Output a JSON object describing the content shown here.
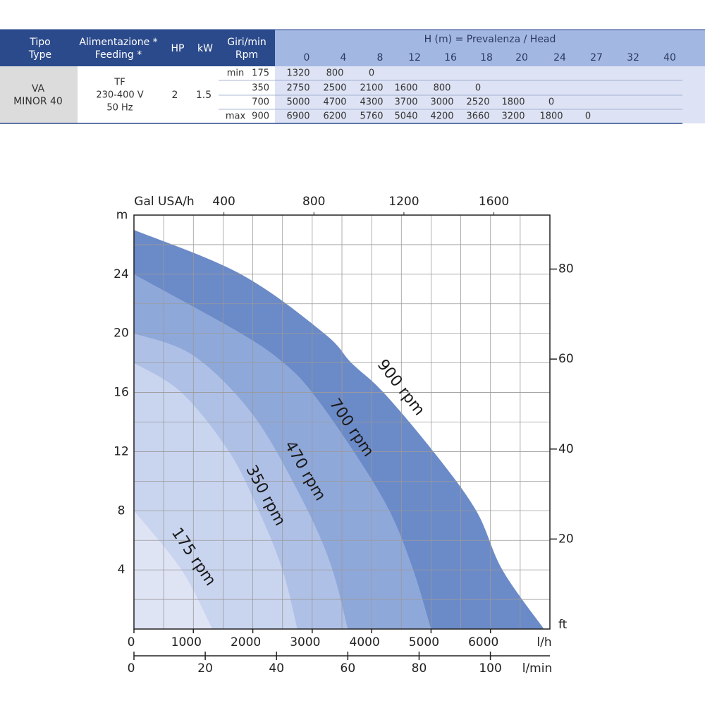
{
  "table": {
    "headers": [
      [
        "Tipo",
        "Type"
      ],
      [
        "Alimentazione *",
        "Feeding *"
      ],
      [
        "HP"
      ],
      [
        "kW"
      ],
      [
        "Giri/min",
        "Rpm"
      ]
    ],
    "head_title": "H (m) = Prevalenza /  Head",
    "heads": [
      "0",
      "4",
      "8",
      "12",
      "16",
      "18",
      "20",
      "24",
      "27",
      "32",
      "40"
    ],
    "model": [
      "VA",
      "MINOR 40"
    ],
    "feeding": [
      "TF",
      "230-400 V",
      "50 Hz"
    ],
    "hp": "2",
    "kw": "1.5",
    "rows": [
      {
        "tag": "min",
        "rpm": "175",
        "flows": [
          "1320",
          "800",
          "0"
        ]
      },
      {
        "rpm": "350",
        "flows": [
          "2750",
          "2500",
          "2100",
          "1600",
          "800",
          "0"
        ]
      },
      {
        "rpm": "700",
        "flows": [
          "5000",
          "4700",
          "4300",
          "3700",
          "3000",
          "2520",
          "1800",
          "0"
        ]
      },
      {
        "tag": "max",
        "rpm": "900",
        "flows": [
          "6900",
          "6200",
          "5760",
          "5040",
          "4200",
          "3660",
          "3200",
          "1800",
          "0"
        ]
      }
    ]
  },
  "chart_data": {
    "type": "area",
    "x_label": "l/h",
    "y_label": "m",
    "y2_label": "ft",
    "xtop_label": "Gal USA/h",
    "xbottom2_label": "l/min",
    "xlim": [
      0,
      7000
    ],
    "xticks": [
      0,
      1000,
      2000,
      3000,
      4000,
      5000,
      6000
    ],
    "ylim": [
      0,
      28
    ],
    "yticks": [
      4,
      8,
      12,
      16,
      20,
      24
    ],
    "y2lim": [
      0,
      92
    ],
    "y2ticks": [
      20,
      40,
      60,
      80
    ],
    "xtop_lim": [
      0,
      1849
    ],
    "xtop_ticks": [
      400,
      800,
      1200,
      1600
    ],
    "xbottom2_lim": [
      0,
      116.7
    ],
    "xbottom2_ticks": [
      0,
      20,
      40,
      60,
      80,
      100
    ],
    "grid": true,
    "xgrid_step": 500,
    "ygrid_step": 2,
    "series": [
      {
        "name": "900 rpm",
        "color": "#6b8ac8",
        "x": [
          0,
          1800,
          3200,
          3660,
          4200,
          5040,
          5760,
          6200,
          6900
        ],
        "values": [
          27,
          24,
          20,
          18,
          16,
          12,
          8,
          4,
          0
        ]
      },
      {
        "name": "700 rpm",
        "color": "#8fa8da",
        "x": [
          0,
          1800,
          2520,
          3000,
          3700,
          4300,
          4700,
          5000
        ],
        "values": [
          24,
          20,
          18,
          16,
          12,
          8,
          4,
          0
        ]
      },
      {
        "name": "470 rpm",
        "color": "#afc0e6",
        "x": [
          0,
          1000,
          2000,
          2800,
          3300,
          3600
        ],
        "values": [
          20,
          18.5,
          14.5,
          9,
          4.5,
          0
        ]
      },
      {
        "name": "350 rpm",
        "color": "#c9d4ef",
        "x": [
          0,
          800,
          1600,
          2100,
          2500,
          2750
        ],
        "values": [
          18,
          16,
          12,
          8,
          4,
          0
        ]
      },
      {
        "name": "175 rpm",
        "color": "#dfe4f5",
        "x": [
          0,
          800,
          1320
        ],
        "values": [
          8,
          4,
          0
        ]
      }
    ]
  }
}
